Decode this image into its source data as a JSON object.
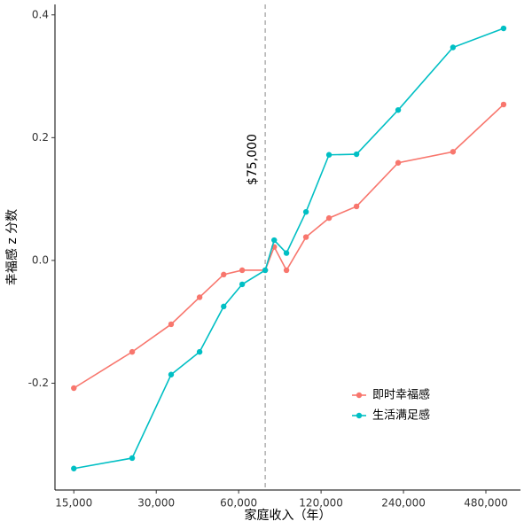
{
  "chart_data": {
    "type": "line",
    "x_label": "家庭收入（年）",
    "y_label": "幸福感 z 分数",
    "x": [
      15000,
      24500,
      34000,
      43200,
      52900,
      61800,
      75000,
      80900,
      89700,
      105700,
      128300,
      161700,
      229500,
      364000,
      557000
    ],
    "series": [
      {
        "name": "即时幸福感",
        "color": "#F8766D",
        "values": [
          -0.208,
          -0.149,
          -0.104,
          -0.06,
          -0.023,
          -0.016,
          -0.016,
          0.022,
          -0.016,
          0.038,
          0.069,
          0.088,
          0.159,
          0.177,
          0.254
        ]
      },
      {
        "name": "生活满足感",
        "color": "#00BFC4",
        "values": [
          -0.339,
          -0.322,
          -0.186,
          -0.149,
          -0.075,
          -0.039,
          -0.016,
          0.033,
          0.012,
          0.079,
          0.172,
          0.173,
          0.245,
          0.347,
          0.378
        ]
      }
    ],
    "x_log": true,
    "xlim": [
      12800,
      642000
    ],
    "xticks": [
      {
        "value": 15000,
        "label": "15,000"
      },
      {
        "value": 30000,
        "label": "30,000"
      },
      {
        "value": 60000,
        "label": "60,000"
      },
      {
        "value": 120000,
        "label": "120,000"
      },
      {
        "value": 240000,
        "label": "240,000"
      },
      {
        "value": 480000,
        "label": "480,000"
      }
    ],
    "ylim": [
      -0.374,
      0.417
    ],
    "yticks": [
      -0.2,
      {
        "value": 0,
        "label": "0.0"
      },
      0.2,
      0.4
    ],
    "grid": false,
    "legend_position": "bottom-right",
    "annotation": {
      "text": "$75,000",
      "x": 75000
    }
  }
}
